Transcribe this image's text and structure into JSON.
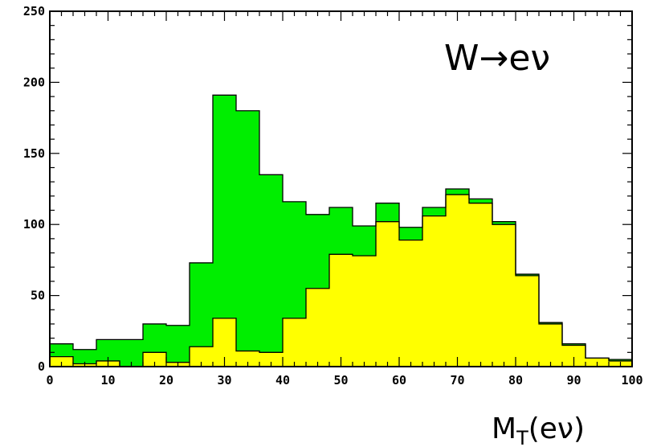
{
  "chart_data": {
    "type": "histogram",
    "annotation": "W→eν",
    "xlabel": {
      "main": "M",
      "sub": "T",
      "rest": "(eν)"
    },
    "ylabel": "",
    "xlim": [
      0,
      100
    ],
    "ylim": [
      0,
      250
    ],
    "x_ticks": [
      "0",
      "10",
      "20",
      "30",
      "40",
      "50",
      "60",
      "70",
      "80",
      "90",
      "100"
    ],
    "y_ticks": [
      "0",
      "50",
      "100",
      "150",
      "200",
      "250"
    ],
    "bin_edges": [
      0,
      4,
      8,
      12,
      16,
      20,
      24,
      28,
      32,
      36,
      40,
      44,
      48,
      52,
      56,
      60,
      64,
      68,
      72,
      76,
      80,
      84,
      88,
      92,
      96,
      100
    ],
    "series": [
      {
        "color": "#00ee00",
        "values": [
          16,
          12,
          19,
          19,
          30,
          29,
          73,
          191,
          180,
          135,
          116,
          107,
          112,
          99,
          115,
          98,
          112,
          125,
          118,
          102,
          65,
          31,
          16,
          6,
          5
        ]
      },
      {
        "color": "#ffff00",
        "values": [
          7,
          2,
          4,
          0,
          10,
          3,
          14,
          34,
          11,
          10,
          34,
          55,
          79,
          78,
          102,
          89,
          106,
          121,
          115,
          100,
          64,
          30,
          15,
          6,
          4
        ]
      }
    ]
  }
}
